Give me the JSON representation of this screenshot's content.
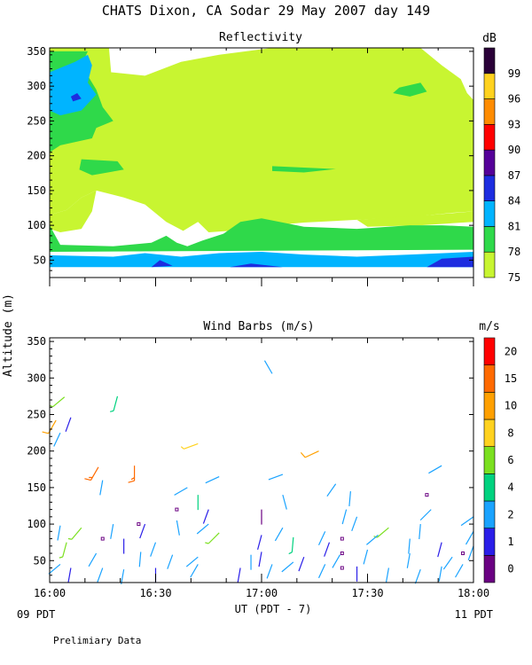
{
  "title": "CHATS Dixon, CA  Sodar  29 May 2007  day 149",
  "y_axis_label": "Altitude (m)",
  "x_axis_label": "UT  (PDT - 7)",
  "footer_left": "09 PDT",
  "footer_right": "11 PDT",
  "note": "Prelimiary Data",
  "chart_data": [
    {
      "type": "heatmap",
      "title": "Reflectivity",
      "colorbar_unit": "dB",
      "x_ticks": [
        "16:00",
        "16:30",
        "17:00",
        "17:30",
        "18:00"
      ],
      "xlim_hours": [
        16.0,
        18.0
      ],
      "y_ticks": [
        50,
        100,
        150,
        200,
        250,
        300,
        350
      ],
      "ylim": [
        25,
        355
      ],
      "levels": [
        75,
        78,
        81,
        84,
        87,
        90,
        93,
        96,
        99
      ],
      "colors": [
        "#c8f531",
        "#2fd94a",
        "#00b4ff",
        "#1d2de0",
        "#550099",
        "#ff0000",
        "#ff8c00",
        "#ffd21f",
        "#2a0038"
      ],
      "regions": [
        {
          "level": 75,
          "points": [
            [
              16.0,
              355
            ],
            [
              16.28,
              355
            ],
            [
              16.29,
              320
            ],
            [
              16.45,
              315
            ],
            [
              16.62,
              335
            ],
            [
              16.8,
              345
            ],
            [
              17.05,
              355
            ],
            [
              17.75,
              355
            ],
            [
              17.85,
              330
            ],
            [
              17.94,
              310
            ],
            [
              17.97,
              290
            ],
            [
              18.0,
              280
            ],
            [
              18.0,
              120
            ],
            [
              17.9,
              118
            ],
            [
              17.7,
              112
            ],
            [
              17.45,
              108
            ],
            [
              17.2,
              104
            ],
            [
              17.05,
              100
            ],
            [
              16.9,
              104
            ],
            [
              16.85,
              92
            ],
            [
              16.75,
              90
            ],
            [
              16.7,
              105
            ],
            [
              16.63,
              92
            ],
            [
              16.55,
              105
            ],
            [
              16.45,
              130
            ],
            [
              16.35,
              140
            ],
            [
              16.22,
              150
            ],
            [
              16.15,
              140
            ],
            [
              16.08,
              122
            ],
            [
              16.0,
              115
            ]
          ]
        },
        {
          "level": 75,
          "points": [
            [
              16.0,
              115
            ],
            [
              16.08,
              122
            ],
            [
              16.15,
              140
            ],
            [
              16.22,
              150
            ],
            [
              16.2,
              120
            ],
            [
              16.15,
              95
            ],
            [
              16.05,
              90
            ],
            [
              16.0,
              95
            ]
          ]
        },
        {
          "level": 75,
          "points": [
            [
              17.45,
              108
            ],
            [
              17.8,
              115
            ],
            [
              18.0,
              120
            ],
            [
              18.0,
              105
            ],
            [
              17.75,
              100
            ],
            [
              17.5,
              98
            ]
          ]
        },
        {
          "level": 78,
          "points": [
            [
              16.0,
              350
            ],
            [
              16.18,
              350
            ],
            [
              16.15,
              330
            ],
            [
              16.2,
              305
            ],
            [
              16.22,
              295
            ],
            [
              16.25,
              270
            ],
            [
              16.3,
              250
            ],
            [
              16.22,
              240
            ],
            [
              16.2,
              225
            ],
            [
              16.05,
              215
            ],
            [
              16.0,
              205
            ]
          ]
        },
        {
          "level": 78,
          "points": [
            [
              16.0,
              100
            ],
            [
              16.05,
              72
            ],
            [
              16.3,
              70
            ],
            [
              16.48,
              75
            ],
            [
              16.55,
              85
            ],
            [
              16.6,
              75
            ],
            [
              16.65,
              70
            ],
            [
              16.72,
              78
            ],
            [
              16.82,
              88
            ],
            [
              16.9,
              105
            ],
            [
              17.0,
              110
            ],
            [
              17.2,
              98
            ],
            [
              17.45,
              95
            ],
            [
              17.7,
              100
            ],
            [
              17.85,
              100
            ],
            [
              18.0,
              98
            ],
            [
              18.0,
              65
            ],
            [
              16.0,
              62
            ]
          ]
        },
        {
          "level": 78,
          "points": [
            [
              16.15,
              195
            ],
            [
              16.32,
              192
            ],
            [
              16.35,
              180
            ],
            [
              16.2,
              172
            ],
            [
              16.14,
              180
            ]
          ]
        },
        {
          "level": 78,
          "points": [
            [
              17.65,
              298
            ],
            [
              17.75,
              305
            ],
            [
              17.78,
              292
            ],
            [
              17.7,
              285
            ],
            [
              17.62,
              290
            ]
          ]
        },
        {
          "level": 78,
          "points": [
            [
              17.05,
              185
            ],
            [
              17.2,
              183
            ],
            [
              17.35,
              181
            ],
            [
              17.2,
              176
            ],
            [
              17.05,
              178
            ]
          ]
        },
        {
          "level": 81,
          "points": [
            [
              16.0,
              320
            ],
            [
              16.12,
              335
            ],
            [
              16.18,
              345
            ],
            [
              16.2,
              330
            ],
            [
              16.18,
              305
            ],
            [
              16.22,
              288
            ],
            [
              16.15,
              265
            ],
            [
              16.05,
              258
            ],
            [
              16.0,
              265
            ]
          ]
        },
        {
          "level": 81,
          "points": [
            [
              16.0,
              57
            ],
            [
              16.3,
              55
            ],
            [
              16.45,
              60
            ],
            [
              16.62,
              55
            ],
            [
              16.8,
              60
            ],
            [
              17.0,
              62
            ],
            [
              17.2,
              58
            ],
            [
              17.45,
              55
            ],
            [
              17.7,
              58
            ],
            [
              18.0,
              62
            ],
            [
              18.0,
              40
            ],
            [
              16.0,
              40
            ]
          ]
        },
        {
          "level": 84,
          "points": [
            [
              16.48,
              40
            ],
            [
              16.52,
              50
            ],
            [
              16.58,
              42
            ]
          ]
        },
        {
          "level": 84,
          "points": [
            [
              16.85,
              40
            ],
            [
              16.95,
              45
            ],
            [
              17.1,
              40
            ]
          ]
        },
        {
          "level": 84,
          "points": [
            [
              17.78,
              40
            ],
            [
              17.85,
              52
            ],
            [
              18.0,
              55
            ],
            [
              18.0,
              40
            ]
          ]
        },
        {
          "level": 84,
          "points": [
            [
              16.1,
              285
            ],
            [
              16.13,
              290
            ],
            [
              16.15,
              282
            ],
            [
              16.11,
              278
            ]
          ]
        }
      ]
    },
    {
      "type": "scatter",
      "title": "Wind Barbs (m/s)",
      "colorbar_unit": "m/s",
      "x_ticks": [
        "16:00",
        "16:30",
        "17:00",
        "17:30",
        "18:00"
      ],
      "xlim_hours": [
        16.0,
        18.0
      ],
      "y_ticks": [
        50,
        100,
        150,
        200,
        250,
        300,
        350
      ],
      "ylim": [
        20,
        355
      ],
      "levels": [
        0,
        1,
        2,
        4,
        6,
        8,
        10,
        15,
        20
      ],
      "colors": [
        "#6a0082",
        "#2a1ee8",
        "#1aa3ff",
        "#00d27f",
        "#7be020",
        "#ffd21f",
        "#ffa000",
        "#ff6a00",
        "#ff0000"
      ],
      "barbs": [
        [
          16.07,
          274,
          230,
          6
        ],
        [
          16.1,
          246,
          200,
          1
        ],
        [
          16.03,
          242,
          210,
          10
        ],
        [
          16.05,
          225,
          205,
          3
        ],
        [
          16.32,
          275,
          195,
          5
        ],
        [
          17.05,
          306,
          330,
          2
        ],
        [
          16.7,
          210,
          250,
          9
        ],
        [
          16.23,
          178,
          210,
          18
        ],
        [
          16.4,
          180,
          180,
          15
        ],
        [
          17.27,
          200,
          245,
          10
        ],
        [
          16.25,
          160,
          190,
          3
        ],
        [
          16.65,
          150,
          240,
          3
        ],
        [
          16.7,
          140,
          180,
          4
        ],
        [
          16.8,
          165,
          245,
          3
        ],
        [
          17.1,
          168,
          250,
          3
        ],
        [
          17.1,
          140,
          165,
          3
        ],
        [
          17.0,
          120,
          180,
          0
        ],
        [
          16.75,
          120,
          200,
          1
        ],
        [
          16.75,
          100,
          230,
          3
        ],
        [
          16.6,
          105,
          170,
          2
        ],
        [
          16.45,
          100,
          200,
          1
        ],
        [
          17.35,
          155,
          215,
          3
        ],
        [
          17.42,
          145,
          185,
          3
        ],
        [
          17.4,
          120,
          195,
          2
        ],
        [
          17.45,
          110,
          200,
          3
        ],
        [
          17.6,
          95,
          230,
          6
        ],
        [
          17.85,
          180,
          240,
          2
        ],
        [
          18.0,
          110,
          235,
          2
        ],
        [
          18.0,
          90,
          210,
          2
        ],
        [
          17.8,
          120,
          225,
          3
        ],
        [
          17.75,
          100,
          185,
          2
        ],
        [
          16.05,
          98,
          190,
          3
        ],
        [
          16.15,
          95,
          220,
          6
        ],
        [
          16.3,
          100,
          190,
          2
        ],
        [
          16.35,
          80,
          180,
          1
        ],
        [
          16.5,
          75,
          200,
          2
        ],
        [
          16.8,
          88,
          225,
          6
        ],
        [
          17.0,
          85,
          195,
          1
        ],
        [
          17.0,
          62,
          190,
          1
        ],
        [
          17.1,
          95,
          210,
          2
        ],
        [
          17.15,
          82,
          185,
          5
        ],
        [
          17.3,
          90,
          205,
          3
        ],
        [
          17.32,
          75,
          200,
          1
        ],
        [
          17.55,
          85,
          230,
          2
        ],
        [
          17.7,
          80,
          185,
          2
        ],
        [
          17.85,
          75,
          195,
          1
        ],
        [
          16.05,
          45,
          230,
          3
        ],
        [
          16.1,
          40,
          190,
          1
        ],
        [
          16.25,
          40,
          200,
          2
        ],
        [
          16.35,
          38,
          190,
          2
        ],
        [
          16.5,
          40,
          180,
          1
        ],
        [
          16.7,
          45,
          210,
          2
        ],
        [
          16.9,
          40,
          190,
          1
        ],
        [
          17.05,
          45,
          200,
          2
        ],
        [
          17.15,
          48,
          230,
          2
        ],
        [
          17.3,
          45,
          205,
          2
        ],
        [
          17.45,
          42,
          180,
          1
        ],
        [
          17.6,
          40,
          190,
          2
        ],
        [
          17.75,
          38,
          200,
          2
        ],
        [
          17.85,
          42,
          190,
          2
        ],
        [
          17.95,
          45,
          210,
          2
        ],
        [
          16.08,
          75,
          195,
          6
        ],
        [
          16.22,
          60,
          210,
          3
        ],
        [
          16.43,
          62,
          185,
          2
        ],
        [
          16.58,
          58,
          200,
          2
        ],
        [
          16.7,
          55,
          230,
          3
        ],
        [
          16.95,
          58,
          180,
          2
        ],
        [
          17.2,
          55,
          200,
          1
        ],
        [
          17.37,
          58,
          210,
          2
        ],
        [
          17.5,
          65,
          195,
          3
        ],
        [
          17.7,
          60,
          190,
          2
        ],
        [
          17.9,
          55,
          215,
          2
        ],
        [
          18.0,
          70,
          200,
          2
        ]
      ],
      "calm_points": [
        [
          16.25,
          80
        ],
        [
          16.42,
          100
        ],
        [
          16.6,
          120
        ],
        [
          17.38,
          80
        ],
        [
          17.38,
          60
        ],
        [
          17.38,
          40
        ],
        [
          17.78,
          140
        ],
        [
          17.95,
          60
        ]
      ]
    }
  ]
}
